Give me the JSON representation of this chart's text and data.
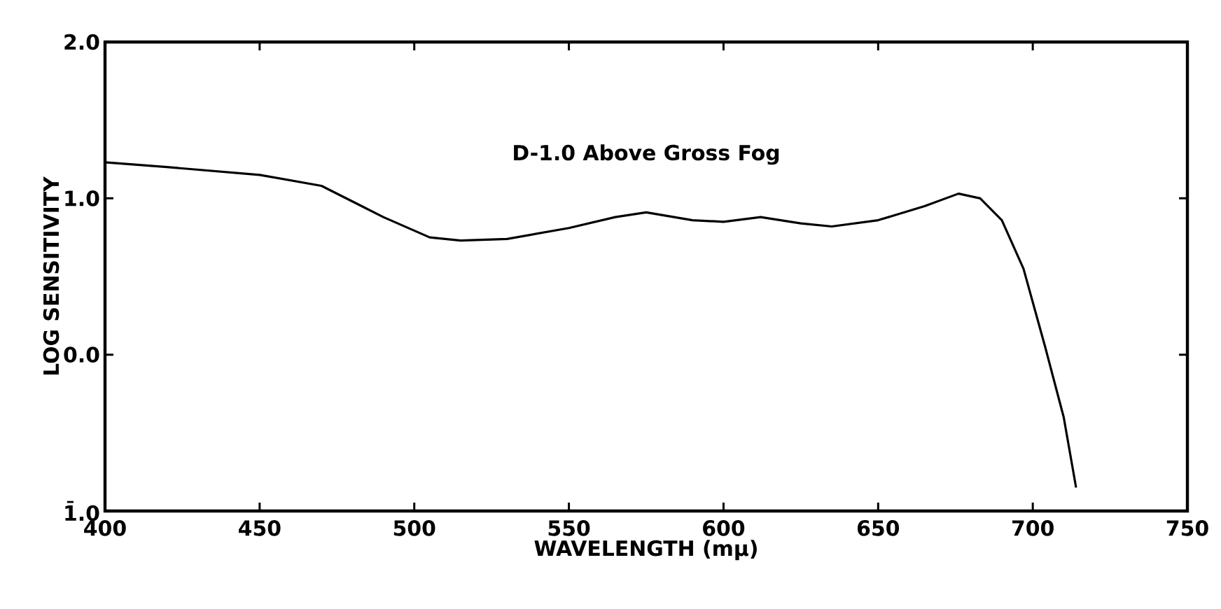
{
  "chart_data": {
    "type": "line",
    "xlabel": "WAVELENGTH (mμ)",
    "ylabel": "LOG SENSITIVITY",
    "annotations": [
      "D-1.0 Above Gross Fog"
    ],
    "xlim": [
      400,
      750
    ],
    "ylim": [
      -1,
      2
    ],
    "xticks": [
      400,
      450,
      500,
      550,
      600,
      650,
      700,
      750
    ],
    "yticks": [
      {
        "value": -1,
        "label": "1̄.0"
      },
      {
        "value": 0,
        "label": "0.0"
      },
      {
        "value": 1,
        "label": "1.0"
      },
      {
        "value": 2,
        "label": "2.0"
      }
    ],
    "grid": false,
    "marker": "none",
    "line_style": "solid",
    "series": [
      {
        "color": "#000000",
        "x": [
          400,
          420,
          450,
          470,
          490,
          505,
          515,
          530,
          550,
          565,
          575,
          590,
          600,
          612,
          625,
          635,
          650,
          665,
          676,
          683,
          690,
          697,
          704,
          710,
          714
        ],
        "values": [
          1.23,
          1.2,
          1.15,
          1.08,
          0.88,
          0.75,
          0.73,
          0.74,
          0.81,
          0.88,
          0.91,
          0.86,
          0.85,
          0.88,
          0.84,
          0.82,
          0.86,
          0.95,
          1.03,
          1.0,
          0.86,
          0.55,
          0.05,
          -0.4,
          -0.85
        ]
      }
    ]
  }
}
